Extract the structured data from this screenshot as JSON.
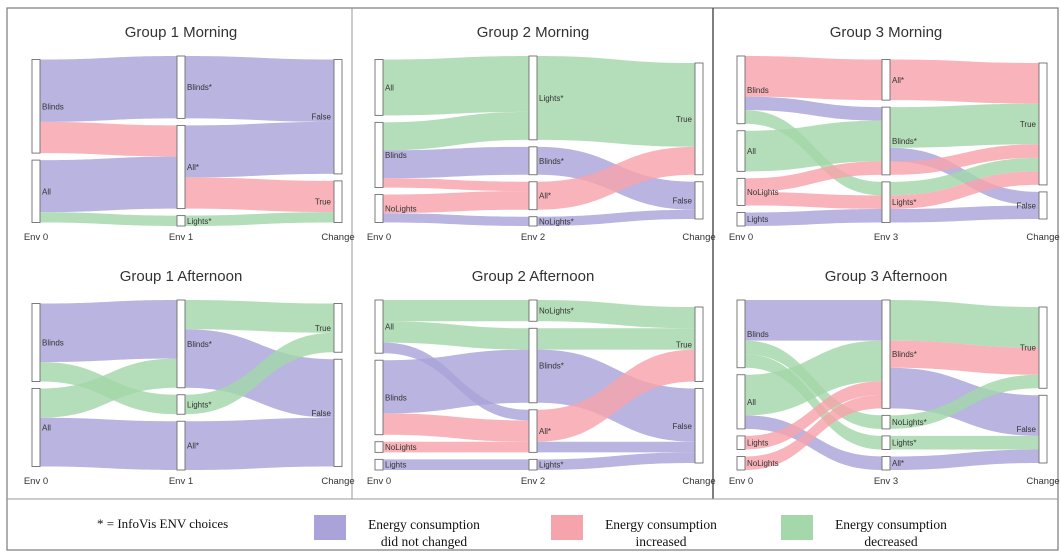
{
  "chart_data": {
    "type": "sankey",
    "colors": {
      "same": "#a9a3d9",
      "increased": "#f6a4ab",
      "decreased": "#a4d7aa"
    },
    "legend": {
      "note": "* = InfoVis ENV choices",
      "items": [
        {
          "key": "same",
          "lines": [
            "Energy consumption",
            "did not changed"
          ]
        },
        {
          "key": "increased",
          "lines": [
            "Energy consumption",
            "increased"
          ]
        },
        {
          "key": "decreased",
          "lines": [
            "Energy consumption",
            "decreased"
          ]
        }
      ]
    },
    "panels": [
      {
        "title": "Group 1 Morning",
        "axes": [
          "Env 0",
          "Env 1",
          "Change"
        ],
        "left": [
          "Blinds",
          "All"
        ],
        "middle": [
          "Blinds*",
          "All*",
          "Lights*"
        ],
        "right": [
          "False",
          "True"
        ],
        "flows": [
          {
            "from": "Blinds",
            "to": "Blinds*",
            "kind": "same",
            "value": 6
          },
          {
            "from": "Blinds",
            "to": "All*",
            "kind": "increased",
            "value": 3
          },
          {
            "from": "All",
            "to": "All*",
            "kind": "same",
            "value": 5
          },
          {
            "from": "All",
            "to": "Lights*",
            "kind": "decreased",
            "value": 1
          },
          {
            "from": "Blinds*",
            "to": "False",
            "kind": "same",
            "value": 6
          },
          {
            "from": "All*",
            "to": "False",
            "kind": "same",
            "value": 5
          },
          {
            "from": "All*",
            "to": "True",
            "kind": "increased",
            "value": 3
          },
          {
            "from": "Lights*",
            "to": "True",
            "kind": "decreased",
            "value": 1
          }
        ]
      },
      {
        "title": "Group 2 Morning",
        "axes": [
          "Env 0",
          "Env 2",
          "Change"
        ],
        "left": [
          "All",
          "Blinds",
          "NoLights"
        ],
        "middle": [
          "Lights*",
          "Blinds*",
          "All*",
          "NoLights*"
        ],
        "right": [
          "True",
          "False"
        ],
        "flows": [
          {
            "from": "All",
            "to": "Lights*",
            "kind": "decreased",
            "value": 6
          },
          {
            "from": "Blinds",
            "to": "Lights*",
            "kind": "decreased",
            "value": 3
          },
          {
            "from": "Blinds",
            "to": "Blinds*",
            "kind": "same",
            "value": 3
          },
          {
            "from": "Blinds",
            "to": "All*",
            "kind": "increased",
            "value": 1
          },
          {
            "from": "NoLights",
            "to": "All*",
            "kind": "increased",
            "value": 2
          },
          {
            "from": "NoLights",
            "to": "NoLights*",
            "kind": "same",
            "value": 1
          },
          {
            "from": "Lights*",
            "to": "True",
            "kind": "decreased",
            "value": 9
          },
          {
            "from": "Blinds*",
            "to": "False",
            "kind": "same",
            "value": 3
          },
          {
            "from": "All*",
            "to": "True",
            "kind": "increased",
            "value": 3
          },
          {
            "from": "NoLights*",
            "to": "False",
            "kind": "same",
            "value": 1
          }
        ]
      },
      {
        "title": "Group 3 Morning",
        "axes": [
          "Env 0",
          "Env 3",
          "Change"
        ],
        "left": [
          "Blinds",
          "All",
          "NoLights",
          "Lights"
        ],
        "middle": [
          "All*",
          "Blinds*",
          "Lights*"
        ],
        "right": [
          "True",
          "False"
        ],
        "flows": [
          {
            "from": "Blinds",
            "to": "All*",
            "kind": "increased",
            "value": 3
          },
          {
            "from": "Blinds",
            "to": "Blinds*",
            "kind": "same",
            "value": 1
          },
          {
            "from": "Blinds",
            "to": "Lights*",
            "kind": "decreased",
            "value": 1
          },
          {
            "from": "All",
            "to": "Blinds*",
            "kind": "decreased",
            "value": 3
          },
          {
            "from": "NoLights",
            "to": "Blinds*",
            "kind": "increased",
            "value": 1
          },
          {
            "from": "NoLights",
            "to": "Lights*",
            "kind": "increased",
            "value": 1
          },
          {
            "from": "Lights",
            "to": "Lights*",
            "kind": "same",
            "value": 1
          },
          {
            "from": "All*",
            "to": "True",
            "kind": "increased",
            "value": 3
          },
          {
            "from": "Blinds*",
            "to": "True",
            "kind": "decreased",
            "value": 3
          },
          {
            "from": "Blinds*",
            "to": "False",
            "kind": "same",
            "value": 1
          },
          {
            "from": "Blinds*",
            "to": "True",
            "kind": "increased",
            "value": 1
          },
          {
            "from": "Lights*",
            "to": "True",
            "kind": "decreased",
            "value": 1
          },
          {
            "from": "Lights*",
            "to": "True",
            "kind": "increased",
            "value": 1
          },
          {
            "from": "Lights*",
            "to": "False",
            "kind": "same",
            "value": 1
          }
        ]
      },
      {
        "title": "Group 1 Afternoon",
        "axes": [
          "Env 0",
          "Env 1",
          "Change"
        ],
        "left": [
          "Blinds",
          "All"
        ],
        "middle": [
          "Blinds*",
          "Lights*",
          "All*"
        ],
        "right": [
          "True",
          "False"
        ],
        "flows": [
          {
            "from": "Blinds",
            "to": "Blinds*",
            "kind": "same",
            "value": 6
          },
          {
            "from": "Blinds",
            "to": "Lights*",
            "kind": "decreased",
            "value": 2
          },
          {
            "from": "All",
            "to": "Blinds*",
            "kind": "decreased",
            "value": 3
          },
          {
            "from": "All",
            "to": "All*",
            "kind": "same",
            "value": 5
          },
          {
            "from": "Blinds*",
            "to": "True",
            "kind": "decreased",
            "value": 3
          },
          {
            "from": "Blinds*",
            "to": "False",
            "kind": "same",
            "value": 6
          },
          {
            "from": "Lights*",
            "to": "True",
            "kind": "decreased",
            "value": 2
          },
          {
            "from": "All*",
            "to": "False",
            "kind": "same",
            "value": 5
          }
        ]
      },
      {
        "title": "Group 2 Afternoon",
        "axes": [
          "Env 0",
          "Env 2",
          "Change"
        ],
        "left": [
          "All",
          "Blinds",
          "NoLights",
          "Lights"
        ],
        "middle": [
          "NoLights*",
          "Blinds*",
          "All*",
          "Lights*"
        ],
        "right": [
          "True",
          "False"
        ],
        "flows": [
          {
            "from": "All",
            "to": "NoLights*",
            "kind": "decreased",
            "value": 2
          },
          {
            "from": "All",
            "to": "Blinds*",
            "kind": "decreased",
            "value": 2
          },
          {
            "from": "All",
            "to": "All*",
            "kind": "same",
            "value": 1
          },
          {
            "from": "Blinds",
            "to": "Blinds*",
            "kind": "same",
            "value": 5
          },
          {
            "from": "Blinds",
            "to": "All*",
            "kind": "increased",
            "value": 2
          },
          {
            "from": "NoLights",
            "to": "All*",
            "kind": "increased",
            "value": 1
          },
          {
            "from": "Lights",
            "to": "Lights*",
            "kind": "same",
            "value": 1
          },
          {
            "from": "NoLights*",
            "to": "True",
            "kind": "decreased",
            "value": 2
          },
          {
            "from": "Blinds*",
            "to": "True",
            "kind": "decreased",
            "value": 2
          },
          {
            "from": "Blinds*",
            "to": "False",
            "kind": "same",
            "value": 5
          },
          {
            "from": "All*",
            "to": "True",
            "kind": "increased",
            "value": 3
          },
          {
            "from": "All*",
            "to": "False",
            "kind": "same",
            "value": 1
          },
          {
            "from": "Lights*",
            "to": "False",
            "kind": "same",
            "value": 1
          }
        ]
      },
      {
        "title": "Group 3 Afternoon",
        "axes": [
          "Env 0",
          "Env 3",
          "Change"
        ],
        "left": [
          "Blinds",
          "All",
          "Lights",
          "NoLights"
        ],
        "middle": [
          "Blinds*",
          "NoLights*",
          "Lights*",
          "All*"
        ],
        "right": [
          "True",
          "False"
        ],
        "flows": [
          {
            "from": "Blinds",
            "to": "Blinds*",
            "kind": "same",
            "value": 3
          },
          {
            "from": "Blinds",
            "to": "NoLights*",
            "kind": "decreased",
            "value": 1
          },
          {
            "from": "Blinds",
            "to": "Lights*",
            "kind": "decreased",
            "value": 1
          },
          {
            "from": "All",
            "to": "Blinds*",
            "kind": "decreased",
            "value": 3
          },
          {
            "from": "All",
            "to": "All*",
            "kind": "same",
            "value": 1
          },
          {
            "from": "Lights",
            "to": "Blinds*",
            "kind": "increased",
            "value": 1
          },
          {
            "from": "NoLights",
            "to": "Blinds*",
            "kind": "increased",
            "value": 1
          },
          {
            "from": "Blinds*",
            "to": "True",
            "kind": "decreased",
            "value": 3
          },
          {
            "from": "Blinds*",
            "to": "True",
            "kind": "increased",
            "value": 2
          },
          {
            "from": "Blinds*",
            "to": "False",
            "kind": "same",
            "value": 3
          },
          {
            "from": "NoLights*",
            "to": "True",
            "kind": "decreased",
            "value": 1
          },
          {
            "from": "Lights*",
            "to": "False",
            "kind": "decreased",
            "value": 1
          },
          {
            "from": "All*",
            "to": "False",
            "kind": "same",
            "value": 1
          }
        ]
      }
    ]
  }
}
